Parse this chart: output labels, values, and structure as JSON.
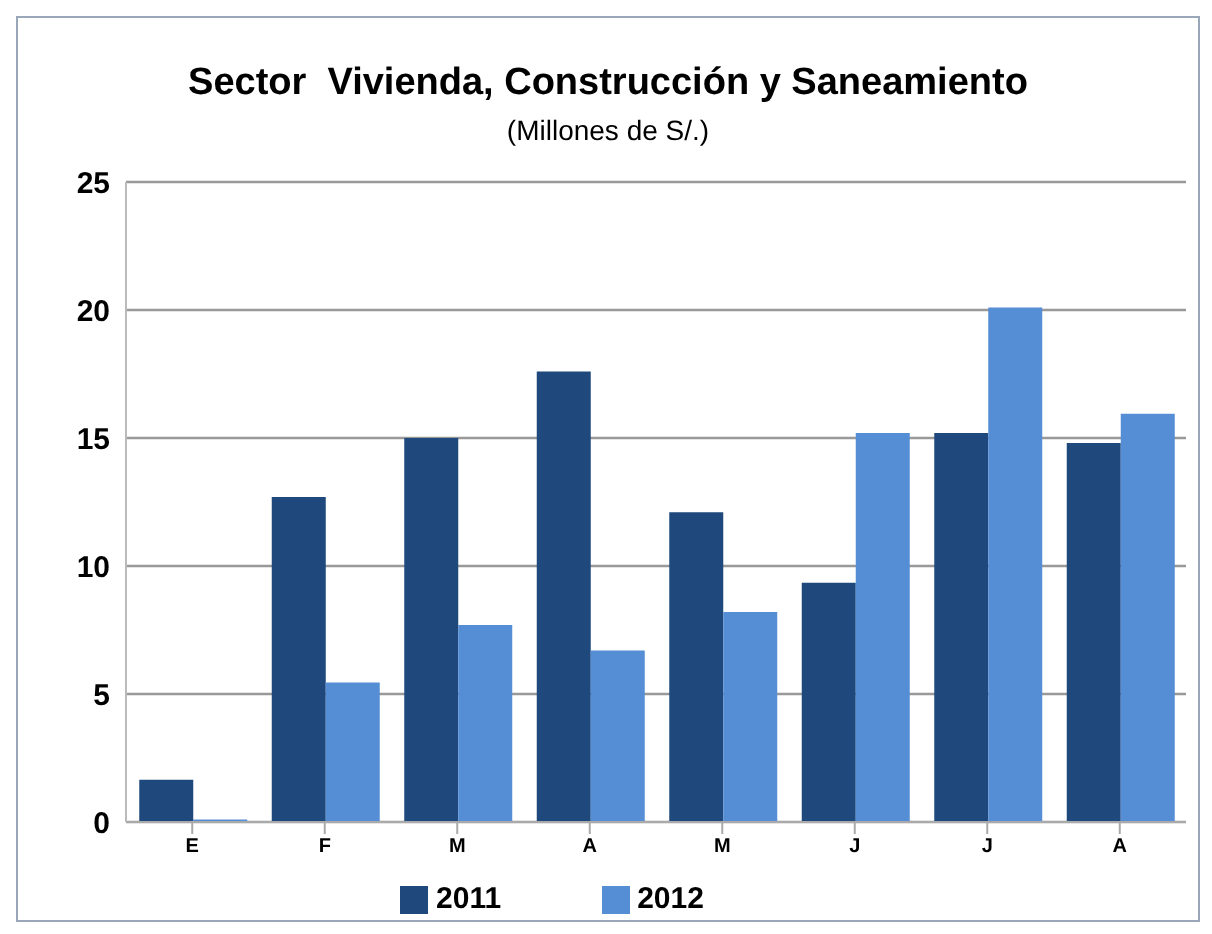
{
  "chart_data": {
    "type": "bar",
    "title": "Sector  Vivienda, Construcción y Saneamiento",
    "subtitle": "(Millones de S/.)",
    "categories": [
      "E",
      "F",
      "M",
      "A",
      "M",
      "J",
      "J",
      "A"
    ],
    "series": [
      {
        "name": "2011",
        "color": "#1f497d",
        "values": [
          1.65,
          12.7,
          15.0,
          17.6,
          12.1,
          9.35,
          15.2,
          14.8
        ]
      },
      {
        "name": "2012",
        "color": "#558ed5",
        "values": [
          0.1,
          5.45,
          7.7,
          6.7,
          8.2,
          15.2,
          20.1,
          15.95
        ]
      }
    ],
    "ylim": [
      0,
      25
    ],
    "yticks": [
      0,
      5,
      10,
      15,
      20,
      25
    ],
    "grid": "y",
    "legend": "bottom"
  }
}
